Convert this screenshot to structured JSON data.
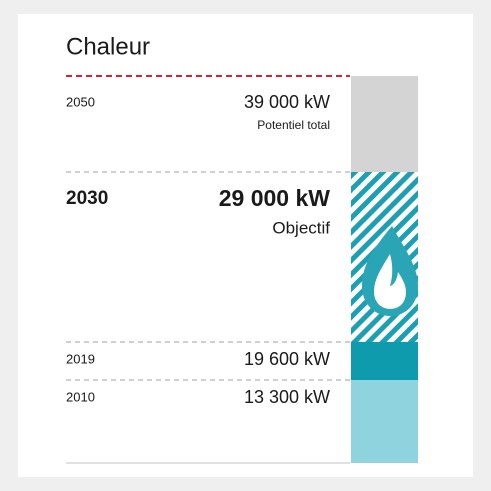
{
  "title": "Chaleur",
  "rows": [
    {
      "year": "2050",
      "value": "39 000 kW",
      "note": "Potentiel total"
    },
    {
      "year": "2030",
      "value": "29 000 kW",
      "note": "Objectif"
    },
    {
      "year": "2019",
      "value": "19 600 kW"
    },
    {
      "year": "2010",
      "value": "13 300 kW"
    }
  ]
}
